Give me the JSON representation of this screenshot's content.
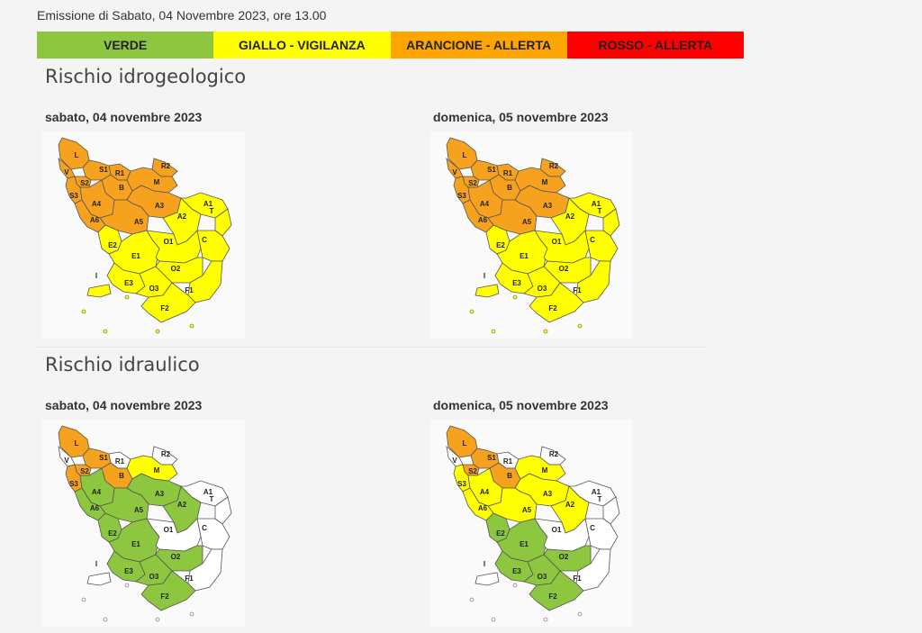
{
  "header": {
    "emission": "Emissione di Sabato, 04 Novembre 2023, ore 13.00"
  },
  "legend": [
    {
      "label": "VERDE",
      "color": "#8dc63f"
    },
    {
      "label": "GIALLO - VIGILANZA",
      "color": "#ffff00"
    },
    {
      "label": "ARANCIONE - ALLERTA",
      "color": "#ffa500"
    },
    {
      "label": "ROSSO - ALLERTA",
      "color": "#ff0000"
    }
  ],
  "colors": {
    "verde": "#8dc63f",
    "giallo": "#ffff00",
    "arancione": "#f7a21e",
    "rosso": "#ff0000",
    "nessuno": "#ffffff"
  },
  "zone_labels": [
    "L",
    "V",
    "S1",
    "S2",
    "S3",
    "R1",
    "R2",
    "B",
    "M",
    "A4",
    "A3",
    "A5",
    "A6",
    "A1",
    "A2",
    "T",
    "C",
    "E2",
    "E1",
    "O1",
    "O2",
    "E3",
    "O3",
    "F1",
    "F2",
    "I"
  ],
  "sections": [
    {
      "title": "Rischio idrogeologico",
      "days": [
        {
          "date": "sabato, 04 novembre 2023",
          "zones": {
            "L": "arancione",
            "V": "arancione",
            "S1": "arancione",
            "S2": "arancione",
            "S3": "arancione",
            "R1": "arancione",
            "R2": "arancione",
            "B": "arancione",
            "M": "arancione",
            "A4": "arancione",
            "A3": "arancione",
            "A5": "arancione",
            "A6": "arancione",
            "A1": "giallo",
            "A2": "giallo",
            "T": "giallo",
            "C": "giallo",
            "E2": "giallo",
            "E1": "giallo",
            "O1": "giallo",
            "O2": "giallo",
            "E3": "giallo",
            "O3": "giallo",
            "F1": "giallo",
            "F2": "giallo",
            "I": "giallo"
          }
        },
        {
          "date": "domenica, 05 novembre 2023",
          "zones": {
            "L": "arancione",
            "V": "arancione",
            "S1": "arancione",
            "S2": "arancione",
            "S3": "arancione",
            "R1": "arancione",
            "R2": "arancione",
            "B": "arancione",
            "M": "arancione",
            "A4": "arancione",
            "A3": "arancione",
            "A5": "arancione",
            "A6": "arancione",
            "A1": "giallo",
            "A2": "giallo",
            "T": "giallo",
            "C": "giallo",
            "E2": "giallo",
            "E1": "giallo",
            "O1": "giallo",
            "O2": "giallo",
            "E3": "giallo",
            "O3": "giallo",
            "F1": "giallo",
            "F2": "giallo",
            "I": "giallo"
          }
        }
      ]
    },
    {
      "title": "Rischio idraulico",
      "days": [
        {
          "date": "sabato, 04 novembre 2023",
          "zones": {
            "L": "arancione",
            "V": "nessuno",
            "S1": "arancione",
            "S2": "arancione",
            "S3": "arancione",
            "R1": "nessuno",
            "R2": "nessuno",
            "B": "arancione",
            "M": "giallo",
            "A4": "verde",
            "A3": "verde",
            "A5": "verde",
            "A6": "verde",
            "A1": "nessuno",
            "A2": "verde",
            "T": "nessuno",
            "C": "nessuno",
            "E2": "verde",
            "E1": "verde",
            "O1": "nessuno",
            "O2": "verde",
            "E3": "verde",
            "O3": "verde",
            "F1": "nessuno",
            "F2": "verde",
            "I": "nessuno"
          }
        },
        {
          "date": "domenica, 05 novembre 2023",
          "zones": {
            "L": "arancione",
            "V": "nessuno",
            "S1": "arancione",
            "S2": "arancione",
            "S3": "giallo",
            "R1": "nessuno",
            "R2": "nessuno",
            "B": "arancione",
            "M": "giallo",
            "A4": "giallo",
            "A3": "giallo",
            "A5": "giallo",
            "A6": "giallo",
            "A1": "nessuno",
            "A2": "giallo",
            "T": "nessuno",
            "C": "nessuno",
            "E2": "verde",
            "E1": "verde",
            "O1": "nessuno",
            "O2": "verde",
            "E3": "verde",
            "O3": "verde",
            "F1": "nessuno",
            "F2": "verde",
            "I": "nessuno"
          }
        }
      ]
    }
  ]
}
